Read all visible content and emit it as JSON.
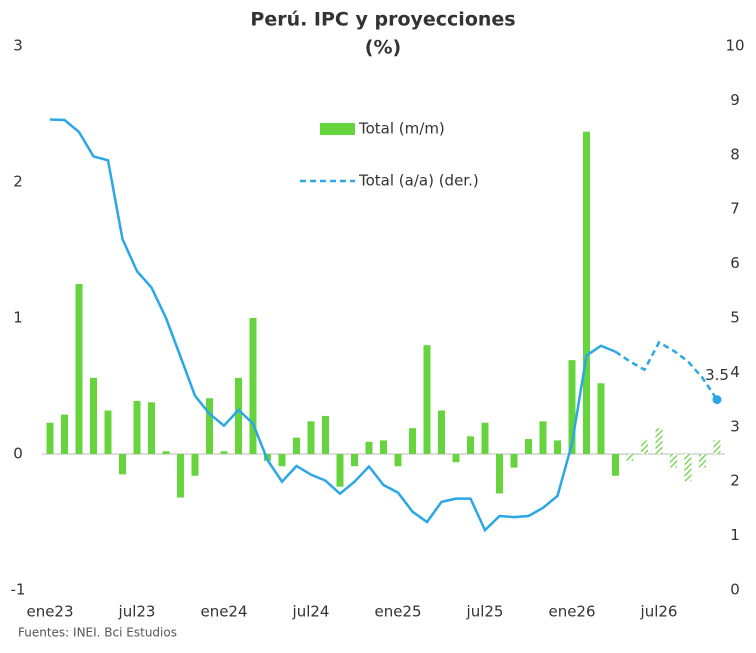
{
  "chart_data": {
    "type": "combo",
    "title": "Perú. IPC y proyecciones",
    "subtitle": "(%)",
    "source": "Fuentes: INEI. Bci Estudios",
    "categories": [
      "ene23",
      null,
      null,
      null,
      null,
      null,
      "jul23",
      null,
      null,
      null,
      null,
      null,
      "ene24",
      null,
      null,
      null,
      null,
      null,
      "jul24",
      null,
      null,
      null,
      null,
      null,
      "ene25",
      null,
      null,
      null,
      null,
      null,
      "jul25",
      null,
      null,
      null,
      null,
      null,
      "ene26",
      null,
      null,
      null,
      null,
      null,
      "jul26",
      null,
      null,
      null,
      null
    ],
    "projection_start": 40,
    "series": [
      {
        "name": "Total (m/m)",
        "type": "bar",
        "color": "#66d43c",
        "values": [
          0.23,
          0.29,
          1.25,
          0.56,
          0.32,
          -0.15,
          0.39,
          0.38,
          0.02,
          -0.32,
          -0.16,
          0.41,
          0.02,
          0.56,
          1.0,
          -0.05,
          -0.09,
          0.12,
          0.24,
          0.28,
          -0.24,
          -0.09,
          0.09,
          0.1,
          -0.09,
          0.19,
          0.8,
          0.32,
          -0.06,
          0.13,
          0.23,
          -0.29,
          -0.1,
          0.11,
          0.24,
          0.1,
          0.69,
          2.37,
          0.52,
          -0.16,
          -0.05,
          0.1,
          0.19,
          -0.1,
          -0.2,
          -0.1,
          0.1
        ]
      },
      {
        "name": "Total (a/a) (der.)",
        "type": "line",
        "color": "#2aa7e6",
        "axis": "y2",
        "values": [
          8.65,
          8.64,
          8.42,
          7.97,
          7.9,
          6.45,
          5.86,
          5.56,
          5.0,
          4.29,
          3.57,
          3.24,
          3.02,
          3.31,
          3.06,
          2.39,
          1.99,
          2.28,
          2.12,
          2.01,
          1.77,
          1.99,
          2.27,
          1.93,
          1.79,
          1.44,
          1.25,
          1.62,
          1.68,
          1.68,
          1.1,
          1.36,
          1.34,
          1.36,
          1.51,
          1.73,
          2.69,
          4.31,
          4.49,
          4.38,
          4.2,
          4.05,
          4.55,
          4.4,
          4.2,
          3.9,
          3.5
        ]
      }
    ],
    "ylim": [
      -1,
      3
    ],
    "yticks": [
      -1,
      0,
      1,
      2,
      3
    ],
    "y2lim": [
      0,
      10
    ],
    "y2ticks": [
      0,
      1,
      2,
      3,
      4,
      5,
      6,
      7,
      8,
      9,
      10
    ],
    "grid": false
  }
}
